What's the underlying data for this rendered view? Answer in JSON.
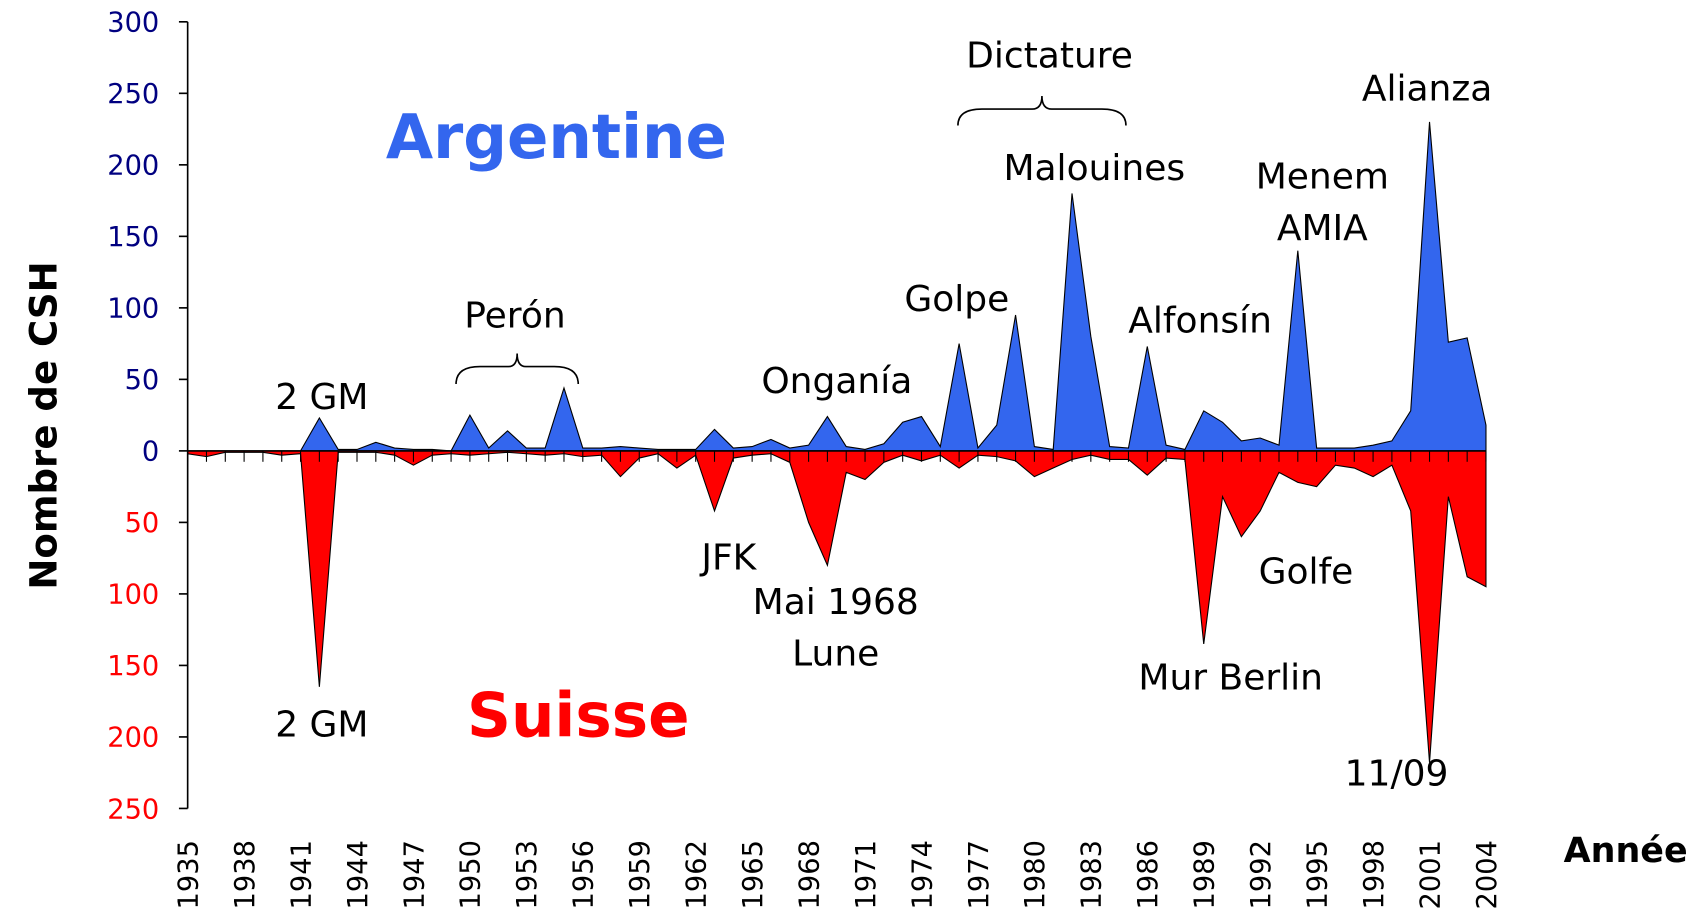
{
  "chart_data": {
    "type": "area",
    "x": [
      1935,
      1936,
      1937,
      1938,
      1939,
      1940,
      1941,
      1942,
      1943,
      1944,
      1945,
      1946,
      1947,
      1948,
      1949,
      1950,
      1951,
      1952,
      1953,
      1954,
      1955,
      1956,
      1957,
      1958,
      1959,
      1960,
      1961,
      1962,
      1963,
      1964,
      1965,
      1966,
      1967,
      1968,
      1969,
      1970,
      1971,
      1972,
      1973,
      1974,
      1975,
      1976,
      1977,
      1978,
      1979,
      1980,
      1981,
      1982,
      1983,
      1984,
      1985,
      1986,
      1987,
      1988,
      1989,
      1990,
      1991,
      1992,
      1993,
      1994,
      1995,
      1996,
      1997,
      1998,
      1999,
      2000,
      2001,
      2002,
      2003,
      2004
    ],
    "series": [
      {
        "name": "Argentine",
        "color": "#3366ee",
        "values": [
          0,
          0,
          0,
          0,
          0,
          0,
          0,
          23,
          1,
          1,
          6,
          2,
          1,
          1,
          0,
          25,
          2,
          14,
          2,
          2,
          44,
          2,
          2,
          3,
          2,
          1,
          1,
          1,
          15,
          2,
          3,
          8,
          2,
          4,
          24,
          3,
          1,
          5,
          20,
          24,
          3,
          75,
          2,
          18,
          95,
          3,
          1,
          180,
          80,
          3,
          2,
          73,
          4,
          1,
          28,
          20,
          7,
          9,
          4,
          140,
          2,
          2,
          2,
          4,
          7,
          28,
          230,
          76,
          79,
          18
        ]
      },
      {
        "name": "Suisse",
        "color": "#ff0000",
        "values": [
          -2,
          -4,
          -1,
          -1,
          -1,
          -3,
          -2,
          -165,
          -1,
          -1,
          -1,
          -3,
          -10,
          -3,
          -2,
          -3,
          -2,
          -1,
          -2,
          -3,
          -2,
          -4,
          -3,
          -18,
          -5,
          -2,
          -12,
          -3,
          -42,
          -5,
          -3,
          -2,
          -8,
          -50,
          -80,
          -15,
          -20,
          -8,
          -3,
          -7,
          -3,
          -12,
          -3,
          -4,
          -7,
          -18,
          -12,
          -6,
          -3,
          -6,
          -6,
          -17,
          -5,
          -6,
          -135,
          -32,
          -60,
          -42,
          -15,
          -22,
          -25,
          -10,
          -12,
          -18,
          -10,
          -42,
          -218,
          -32,
          -88,
          -95
        ]
      }
    ],
    "xlim": [
      1935,
      2004
    ],
    "xticks": [
      1935,
      1938,
      1941,
      1944,
      1947,
      1950,
      1953,
      1956,
      1959,
      1962,
      1965,
      1968,
      1971,
      1974,
      1977,
      1980,
      1983,
      1986,
      1989,
      1992,
      1995,
      1998,
      2001,
      2004
    ],
    "ylim": [
      -250,
      300
    ],
    "yticks": [
      {
        "value": -250,
        "label": "250"
      },
      {
        "value": -200,
        "label": "200"
      },
      {
        "value": -150,
        "label": "150"
      },
      {
        "value": -100,
        "label": "100"
      },
      {
        "value": -50,
        "label": "50"
      },
      0,
      50,
      100,
      150,
      200,
      250,
      300
    ],
    "y_label": "Nombre de CSH",
    "x_label": "Année",
    "annotations": [
      "2 GM",
      "Perón",
      "Onganía",
      "Golpe",
      "Dictature",
      "Malouines",
      "Alfonsín",
      "Menem",
      "AMIA",
      "Alianza",
      "2 GM",
      "JFK",
      "Mai 1968",
      "Lune",
      "Golfe",
      "Mur Berlin",
      "11/09"
    ]
  }
}
